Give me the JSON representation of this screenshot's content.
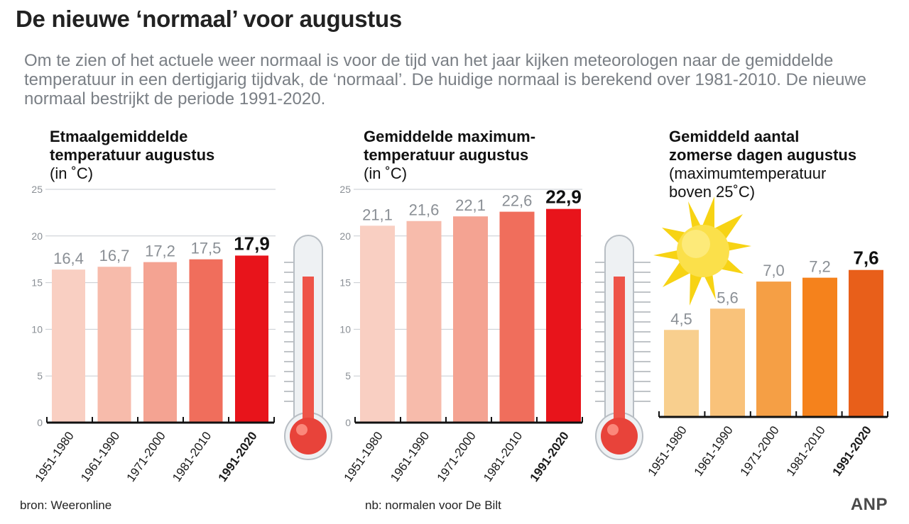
{
  "title": "De nieuwe ‘normaal’ voor augustus",
  "intro": "Om te zien of het actuele weer normaal is voor de tijd van het jaar kijken meteorologen naar de gemiddelde temperatuur in een dertigjarig tijdvak, de ‘normaal’. De huidige normaal is berekend over 1981-2010. De nieuwe normaal bestrijkt de periode 1991-2020.",
  "panels": [
    {
      "title_bold_1": "Etmaalgemiddelde",
      "title_bold_2": "temperatuur augustus",
      "subtitle_1": "(in ˚C)",
      "subtitle_2": ""
    },
    {
      "title_bold_1": "Gemiddelde maximum-",
      "title_bold_2": "temperatuur augustus",
      "subtitle_1": "(in ˚C)",
      "subtitle_2": ""
    },
    {
      "title_bold_1": "Gemiddeld aantal",
      "title_bold_2": "zomerse dagen augustus",
      "subtitle_1": "(maximumtemperatuur",
      "subtitle_2": "boven 25˚C)"
    }
  ],
  "chart_data": [
    {
      "type": "bar",
      "title": "Etmaalgemiddelde temperatuur augustus",
      "ylabel": "(in ˚C)",
      "categories": [
        "1951-1980",
        "1961-1990",
        "1971-2000",
        "1981-2010",
        "1991-2020"
      ],
      "values": [
        16.4,
        16.7,
        17.2,
        17.5,
        17.9
      ],
      "value_labels": [
        "16,4",
        "16,7",
        "17,2",
        "17,5",
        "17,9"
      ],
      "ylim": [
        0,
        25
      ],
      "yticks": [
        "0",
        "5",
        "10",
        "15",
        "20",
        "25"
      ],
      "grid": true,
      "colors": [
        "#f9cfc2",
        "#f7bbab",
        "#f4a392",
        "#f06e5c",
        "#e8141b"
      ]
    },
    {
      "type": "bar",
      "title": "Gemiddelde maximum-temperatuur augustus",
      "ylabel": "(in ˚C)",
      "categories": [
        "1951-1980",
        "1961-1990",
        "1971-2000",
        "1981-2010",
        "1991-2020"
      ],
      "values": [
        21.1,
        21.6,
        22.1,
        22.6,
        22.9
      ],
      "value_labels": [
        "21,1",
        "21,6",
        "22,1",
        "22,6",
        "22,9"
      ],
      "ylim": [
        0,
        25
      ],
      "yticks": [
        "0",
        "5",
        "10",
        "15",
        "20",
        "25"
      ],
      "grid": true,
      "colors": [
        "#f9cfc2",
        "#f7bbab",
        "#f4a392",
        "#f06e5c",
        "#e8141b"
      ]
    },
    {
      "type": "bar",
      "title": "Gemiddeld aantal zomerse dagen augustus",
      "ylabel": "(maximumtemperatuur boven 25˚C)",
      "categories": [
        "1951-1980",
        "1961-1990",
        "1971-2000",
        "1981-2010",
        "1991-2020"
      ],
      "values": [
        4.5,
        5.6,
        7.0,
        7.2,
        7.6
      ],
      "value_labels": [
        "4,5",
        "5,6",
        "7,0",
        "7,2",
        "7,6"
      ],
      "ylim": [
        0,
        11
      ],
      "grid": false,
      "colors": [
        "#f8cf8e",
        "#f9c27a",
        "#f59f45",
        "#f5821c",
        "#e85f1a"
      ]
    }
  ],
  "footer": {
    "source": "bron:  Weeronline",
    "note": "nb: normalen voor De Bilt",
    "logo": "ANP"
  },
  "icons": {
    "thermometer_1": "thermometer-icon",
    "thermometer_2": "thermometer-icon",
    "sun": "sun-icon"
  }
}
